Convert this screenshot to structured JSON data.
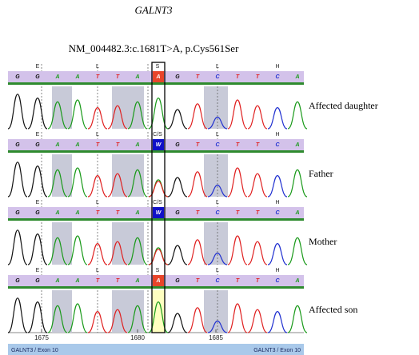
{
  "title": "GALNT3",
  "variant": "NM_004482.3:c.1681T>A, p.Cys561Ser",
  "panels": [
    {
      "label": "Affected daughter",
      "amino_acids": [
        "E",
        "L",
        "S",
        "L",
        "H"
      ],
      "bases": [
        "G",
        "G",
        "A",
        "A",
        "T",
        "T",
        "A",
        "A",
        "G",
        "T",
        "C",
        "T",
        "T",
        "C",
        "A"
      ]
    },
    {
      "label": "Father",
      "amino_acids": [
        "E",
        "L",
        "C/S",
        "L",
        "H"
      ],
      "bases": [
        "G",
        "G",
        "A",
        "A",
        "T",
        "T",
        "A",
        "W",
        "G",
        "T",
        "C",
        "T",
        "T",
        "C",
        "A"
      ]
    },
    {
      "label": "Mother",
      "amino_acids": [
        "E",
        "L",
        "C/S",
        "L",
        "H"
      ],
      "bases": [
        "G",
        "G",
        "A",
        "A",
        "T",
        "T",
        "A",
        "W",
        "G",
        "T",
        "C",
        "T",
        "T",
        "C",
        "A"
      ]
    },
    {
      "label": "Affected son",
      "amino_acids": [
        "E",
        "L",
        "S",
        "L",
        "H"
      ],
      "bases": [
        "G",
        "G",
        "A",
        "A",
        "T",
        "T",
        "A",
        "A",
        "G",
        "T",
        "C",
        "T",
        "T",
        "C",
        "A"
      ]
    }
  ],
  "ruler": [
    "1675",
    "1680",
    "1685"
  ],
  "exon_labels": [
    "GALNT3 / Exon 10",
    "GALNT3 / Exon 10"
  ]
}
